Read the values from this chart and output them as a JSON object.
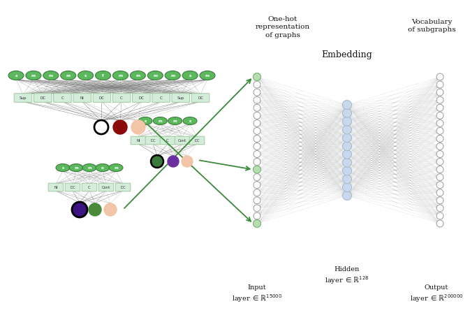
{
  "bg_color": "#ffffff",
  "green_node_color": "#5cb85c",
  "green_node_edge": "#3d7a3d",
  "box_fill": "#d4edda",
  "box_edge": "#9ec99e",
  "text_color": "#222222",
  "line_color": "#666666",
  "green_arrow_color": "#3a8a3a",
  "g1_top_labels": [
    "s",
    "m",
    "m",
    "m",
    "s",
    "f",
    "m",
    "m",
    "m",
    "m",
    "s",
    "m"
  ],
  "g1_mid_labels": [
    "Sup",
    "DC",
    "C",
    "NI",
    "DC",
    "C",
    "DC",
    "C",
    "Sup",
    "DC"
  ],
  "g2_top_labels": [
    "s",
    "m",
    "m",
    "s"
  ],
  "g2_mid_labels": [
    "NI",
    "DC",
    "C",
    "Cont",
    "DC"
  ],
  "g3_top_labels": [
    "s",
    "m",
    "m",
    "o",
    "m"
  ],
  "g3_mid_labels": [
    "NI",
    "DC",
    "C",
    "Cont",
    "DC"
  ],
  "nn_input_n": 20,
  "nn_hidden_n": 12,
  "nn_output_n": 20,
  "label_onehot": "One-hot\nrepresentation\nof graphs",
  "label_vocab": "Vocabulary\nof subgraphs",
  "label_embed": "Embedding",
  "label_hidden": "Hidden\nlayer $\\in \\mathbb{R}^{128}$",
  "label_input": "Input\nlayer $\\in \\mathbb{R}^{15000}$",
  "label_output": "Output\nlayer $\\in \\mathbb{R}^{200000}$"
}
